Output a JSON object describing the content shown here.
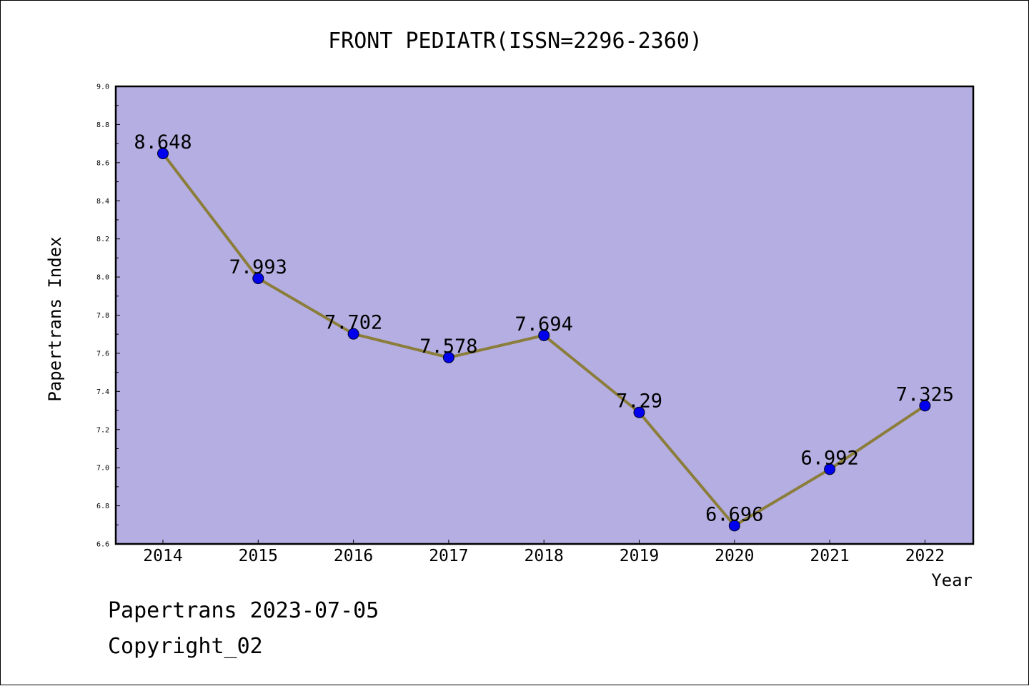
{
  "chart_data": {
    "type": "line",
    "title": "FRONT PEDIATR(ISSN=2296-2360)",
    "xlabel": "Year",
    "ylabel": "Papertrans Index",
    "categories": [
      "2014",
      "2015",
      "2016",
      "2017",
      "2018",
      "2019",
      "2020",
      "2021",
      "2022"
    ],
    "series": [
      {
        "values": [
          8.648,
          7.993,
          7.702,
          7.578,
          7.694,
          7.29,
          6.696,
          6.992,
          7.325
        ],
        "data_labels": [
          "8.648",
          "7.993",
          "7.702",
          "7.578",
          "7.694",
          "7.29",
          "6.696",
          "6.992",
          "7.325"
        ]
      }
    ],
    "ylim": [
      6.6,
      9.0
    ],
    "yticks": [
      "6.6",
      "6.8",
      "7.0",
      "7.2",
      "7.4",
      "7.6",
      "7.8",
      "8.0",
      "8.2",
      "8.4",
      "8.6",
      "8.8",
      "9.0"
    ],
    "grid": false,
    "colors": {
      "plot_background": "#b5aee3",
      "line": "#8b7d3a",
      "marker": "#0000ee"
    }
  },
  "footer": {
    "line1": "Papertrans 2023-07-05",
    "line2": "Copyright_02"
  }
}
